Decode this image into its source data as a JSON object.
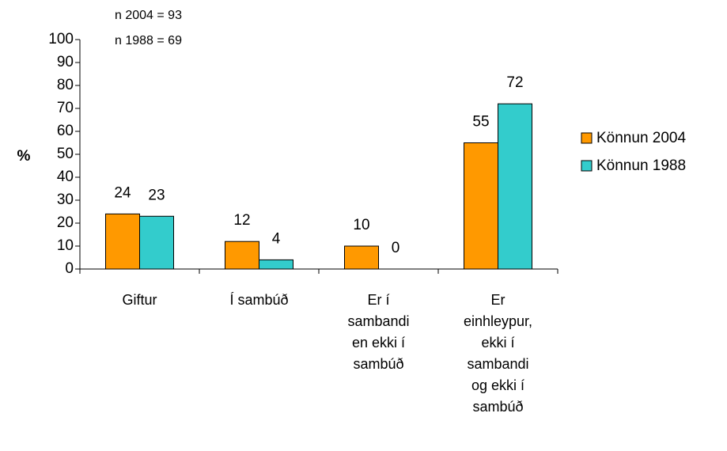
{
  "chart_data": {
    "type": "bar",
    "ylabel": "%",
    "annotations": [
      "n 2004 = 93",
      "n 1988 = 69"
    ],
    "categories": [
      "Giftur",
      "Í sambúð",
      "Er í sambandi en ekki í sambúð",
      "Er einhleypur, ekki í sambandi og ekki í sambúð"
    ],
    "series": [
      {
        "name": "Könnun 2004",
        "color": "#ff9900",
        "values": [
          24,
          12,
          10,
          55
        ]
      },
      {
        "name": "Könnun 1988",
        "color": "#33cccc",
        "values": [
          23,
          4,
          0,
          72
        ]
      }
    ],
    "ylim": [
      0,
      100
    ],
    "yticks": [
      0,
      10,
      20,
      30,
      40,
      50,
      60,
      70,
      80,
      90,
      100
    ],
    "legend": "right"
  }
}
